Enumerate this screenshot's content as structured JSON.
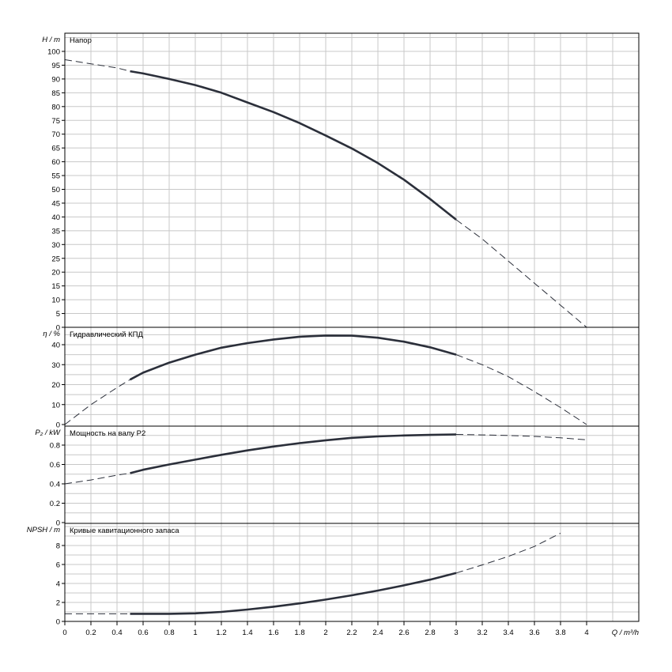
{
  "chart_data": {
    "type": "line",
    "x_axis": {
      "label": "Q / m³/h",
      "range": [
        0,
        4.4
      ],
      "ticks": [
        0,
        0.2,
        0.4,
        0.6,
        0.8,
        1,
        1.2,
        1.4,
        1.6,
        1.8,
        2,
        2.2,
        2.4,
        2.6,
        2.8,
        3,
        3.2,
        3.4,
        3.6,
        3.8,
        4
      ],
      "tick_labels": [
        "0",
        "0.2",
        "0.4",
        "0.6",
        "0.8",
        "1",
        "1.2",
        "1.4",
        "1.6",
        "1.8",
        "2",
        "2.2",
        "2.4",
        "2.6",
        "2.8",
        "3",
        "3.2",
        "3.4",
        "3.6",
        "3.8",
        "4"
      ]
    },
    "panels": [
      {
        "id": "head",
        "title": "Напор",
        "ylabel": "H / m",
        "ylim": [
          0,
          105
        ],
        "ytick_labels": [
          "0",
          "5",
          "10",
          "15",
          "20",
          "25",
          "30",
          "35",
          "40",
          "45",
          "50",
          "55",
          "60",
          "65",
          "70",
          "75",
          "80",
          "85",
          "90",
          "95",
          "100"
        ],
        "ytick_values": [
          0,
          5,
          10,
          15,
          20,
          25,
          30,
          35,
          40,
          45,
          50,
          55,
          60,
          65,
          70,
          75,
          80,
          85,
          90,
          95,
          100
        ],
        "grid_step": 5,
        "curve": {
          "x": [
            0,
            0.2,
            0.4,
            0.5,
            0.6,
            0.8,
            1.0,
            1.2,
            1.4,
            1.6,
            1.8,
            2.0,
            2.2,
            2.4,
            2.6,
            2.8,
            3.0,
            3.2,
            3.4,
            3.6,
            3.8,
            4.0
          ],
          "y": [
            97,
            95.5,
            94,
            92.8,
            92,
            90,
            87.8,
            85,
            81.5,
            78,
            74,
            69.5,
            64.8,
            59.5,
            53.5,
            46.5,
            39,
            32,
            24,
            16,
            8,
            0
          ],
          "solid_range": [
            0.5,
            3.0
          ]
        }
      },
      {
        "id": "efficiency",
        "title": "Гидравлический КПД",
        "ylabel": "η / %",
        "ylim": [
          0,
          47
        ],
        "ytick_labels": [
          "0",
          "10",
          "20",
          "30",
          "40"
        ],
        "ytick_values": [
          0,
          10,
          20,
          30,
          40
        ],
        "grid_step": 5,
        "curve": {
          "x": [
            0,
            0.2,
            0.4,
            0.5,
            0.6,
            0.8,
            1.0,
            1.2,
            1.4,
            1.6,
            1.8,
            2.0,
            2.2,
            2.4,
            2.6,
            2.8,
            3.0,
            3.2,
            3.4,
            3.6,
            3.8,
            4.0
          ],
          "y": [
            0,
            10,
            18.5,
            22.5,
            26,
            31,
            35,
            38.5,
            40.8,
            42.6,
            44,
            44.6,
            44.5,
            43.5,
            41.5,
            38.7,
            35,
            30,
            24,
            16.5,
            8.5,
            0
          ],
          "solid_range": [
            0.5,
            3.0
          ]
        }
      },
      {
        "id": "power",
        "title": "Мощность на валу P2",
        "ylabel": "P₂ / kW",
        "ylim": [
          0,
          1.0
        ],
        "ytick_labels": [
          "0",
          "0.2",
          "0.4",
          "0.6",
          "0.8"
        ],
        "ytick_values": [
          0,
          0.2,
          0.4,
          0.6,
          0.8
        ],
        "grid_step": 0.1,
        "curve": {
          "x": [
            0,
            0.2,
            0.4,
            0.5,
            0.6,
            0.8,
            1.0,
            1.2,
            1.4,
            1.6,
            1.8,
            2.0,
            2.2,
            2.4,
            2.6,
            2.8,
            3.0,
            3.2,
            3.4,
            3.6,
            3.8,
            4.0
          ],
          "y": [
            0.4,
            0.44,
            0.49,
            0.51,
            0.545,
            0.6,
            0.65,
            0.7,
            0.745,
            0.785,
            0.82,
            0.85,
            0.875,
            0.89,
            0.9,
            0.905,
            0.91,
            0.905,
            0.9,
            0.89,
            0.875,
            0.855
          ],
          "solid_range": [
            0.5,
            3.0
          ]
        }
      },
      {
        "id": "npsh",
        "title": "Кривые кавитационного запаса",
        "ylabel": "NPSH / m",
        "ylim": [
          0,
          10
        ],
        "ytick_labels": [
          "0",
          "2",
          "4",
          "6",
          "8"
        ],
        "ytick_values": [
          0,
          2,
          4,
          6,
          8
        ],
        "grid_step": 1,
        "curve": {
          "x": [
            0,
            0.2,
            0.4,
            0.5,
            0.6,
            0.8,
            1.0,
            1.2,
            1.4,
            1.6,
            1.8,
            2.0,
            2.2,
            2.4,
            2.6,
            2.8,
            3.0,
            3.2,
            3.4,
            3.6,
            3.8
          ],
          "y": [
            0.8,
            0.8,
            0.8,
            0.8,
            0.8,
            0.8,
            0.85,
            1.0,
            1.25,
            1.55,
            1.9,
            2.3,
            2.75,
            3.25,
            3.8,
            4.4,
            5.1,
            5.95,
            6.85,
            7.9,
            9.3
          ],
          "solid_range": [
            0.5,
            3.0
          ]
        }
      }
    ],
    "grid": true,
    "legend": "none"
  }
}
